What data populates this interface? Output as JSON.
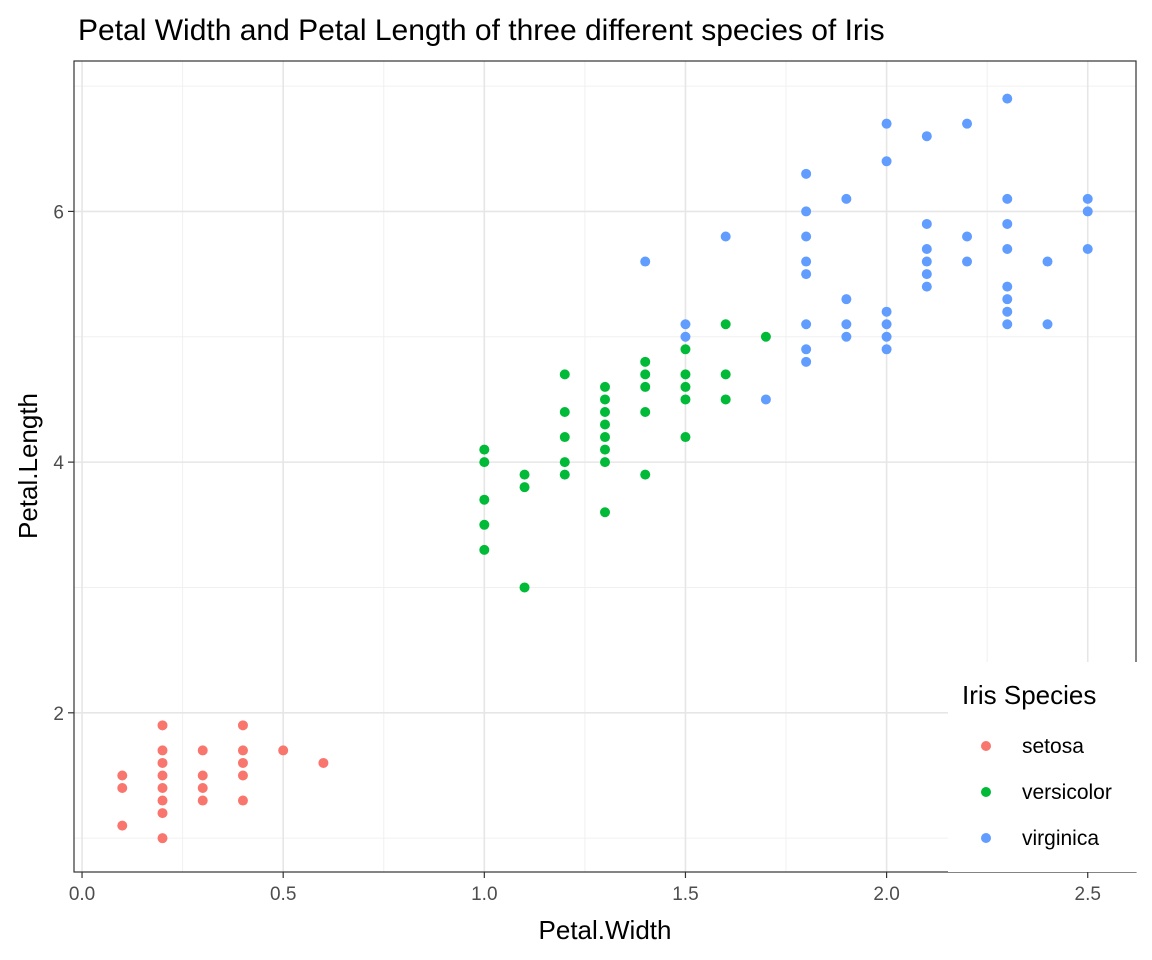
{
  "chart_data": {
    "type": "scatter",
    "title": "Petal Width and Petal Length of three different species of Iris",
    "xlabel": "Petal.Width",
    "ylabel": "Petal.Length",
    "xlim": [
      -0.02,
      2.62
    ],
    "ylim": [
      0.73,
      7.2
    ],
    "xticks": [
      0.0,
      0.5,
      1.0,
      1.5,
      2.0,
      2.5
    ],
    "xtick_labels": [
      "0.0",
      "0.5",
      "1.0",
      "1.5",
      "2.0",
      "2.5"
    ],
    "yticks": [
      2,
      4,
      6
    ],
    "ytick_labels": [
      "2",
      "4",
      "6"
    ],
    "grid": true,
    "legend": {
      "title": "Iris Species",
      "position": "bottom-right"
    },
    "series": [
      {
        "name": "setosa",
        "color": "#F8766D",
        "points": [
          [
            0.1,
            1.1
          ],
          [
            0.1,
            1.4
          ],
          [
            0.1,
            1.5
          ],
          [
            0.2,
            1.0
          ],
          [
            0.2,
            1.2
          ],
          [
            0.2,
            1.3
          ],
          [
            0.2,
            1.4
          ],
          [
            0.2,
            1.5
          ],
          [
            0.2,
            1.6
          ],
          [
            0.2,
            1.7
          ],
          [
            0.2,
            1.9
          ],
          [
            0.3,
            1.3
          ],
          [
            0.3,
            1.4
          ],
          [
            0.3,
            1.5
          ],
          [
            0.3,
            1.7
          ],
          [
            0.4,
            1.3
          ],
          [
            0.4,
            1.5
          ],
          [
            0.4,
            1.6
          ],
          [
            0.4,
            1.7
          ],
          [
            0.4,
            1.9
          ],
          [
            0.5,
            1.7
          ],
          [
            0.6,
            1.6
          ]
        ]
      },
      {
        "name": "versicolor",
        "color": "#00BA38",
        "points": [
          [
            1.0,
            3.3
          ],
          [
            1.0,
            3.5
          ],
          [
            1.0,
            3.7
          ],
          [
            1.0,
            4.0
          ],
          [
            1.0,
            4.1
          ],
          [
            1.1,
            3.0
          ],
          [
            1.1,
            3.8
          ],
          [
            1.1,
            3.9
          ],
          [
            1.2,
            3.9
          ],
          [
            1.2,
            4.0
          ],
          [
            1.2,
            4.2
          ],
          [
            1.2,
            4.4
          ],
          [
            1.2,
            4.7
          ],
          [
            1.3,
            3.6
          ],
          [
            1.3,
            4.0
          ],
          [
            1.3,
            4.1
          ],
          [
            1.3,
            4.2
          ],
          [
            1.3,
            4.3
          ],
          [
            1.3,
            4.4
          ],
          [
            1.3,
            4.5
          ],
          [
            1.3,
            4.6
          ],
          [
            1.4,
            3.9
          ],
          [
            1.4,
            4.4
          ],
          [
            1.4,
            4.6
          ],
          [
            1.4,
            4.7
          ],
          [
            1.4,
            4.8
          ],
          [
            1.5,
            4.2
          ],
          [
            1.5,
            4.5
          ],
          [
            1.5,
            4.6
          ],
          [
            1.5,
            4.7
          ],
          [
            1.5,
            4.9
          ],
          [
            1.6,
            4.5
          ],
          [
            1.6,
            4.7
          ],
          [
            1.6,
            5.1
          ],
          [
            1.7,
            5.0
          ]
        ]
      },
      {
        "name": "virginica",
        "color": "#619CFF",
        "points": [
          [
            1.4,
            5.6
          ],
          [
            1.5,
            5.0
          ],
          [
            1.5,
            5.1
          ],
          [
            1.6,
            5.8
          ],
          [
            1.7,
            4.5
          ],
          [
            1.8,
            4.8
          ],
          [
            1.8,
            4.9
          ],
          [
            1.8,
            5.1
          ],
          [
            1.8,
            5.5
          ],
          [
            1.8,
            5.6
          ],
          [
            1.8,
            5.8
          ],
          [
            1.8,
            6.0
          ],
          [
            1.8,
            6.3
          ],
          [
            1.9,
            5.0
          ],
          [
            1.9,
            5.1
          ],
          [
            1.9,
            5.3
          ],
          [
            1.9,
            6.1
          ],
          [
            2.0,
            4.9
          ],
          [
            2.0,
            5.0
          ],
          [
            2.0,
            5.1
          ],
          [
            2.0,
            5.2
          ],
          [
            2.0,
            6.4
          ],
          [
            2.0,
            6.7
          ],
          [
            2.1,
            5.4
          ],
          [
            2.1,
            5.5
          ],
          [
            2.1,
            5.6
          ],
          [
            2.1,
            5.7
          ],
          [
            2.1,
            5.9
          ],
          [
            2.1,
            6.6
          ],
          [
            2.2,
            5.6
          ],
          [
            2.2,
            5.8
          ],
          [
            2.2,
            6.7
          ],
          [
            2.3,
            5.1
          ],
          [
            2.3,
            5.2
          ],
          [
            2.3,
            5.3
          ],
          [
            2.3,
            5.4
          ],
          [
            2.3,
            5.7
          ],
          [
            2.3,
            5.9
          ],
          [
            2.3,
            6.1
          ],
          [
            2.3,
            6.9
          ],
          [
            2.4,
            5.1
          ],
          [
            2.4,
            5.6
          ],
          [
            2.5,
            5.7
          ],
          [
            2.5,
            6.0
          ],
          [
            2.5,
            6.1
          ]
        ]
      }
    ]
  }
}
